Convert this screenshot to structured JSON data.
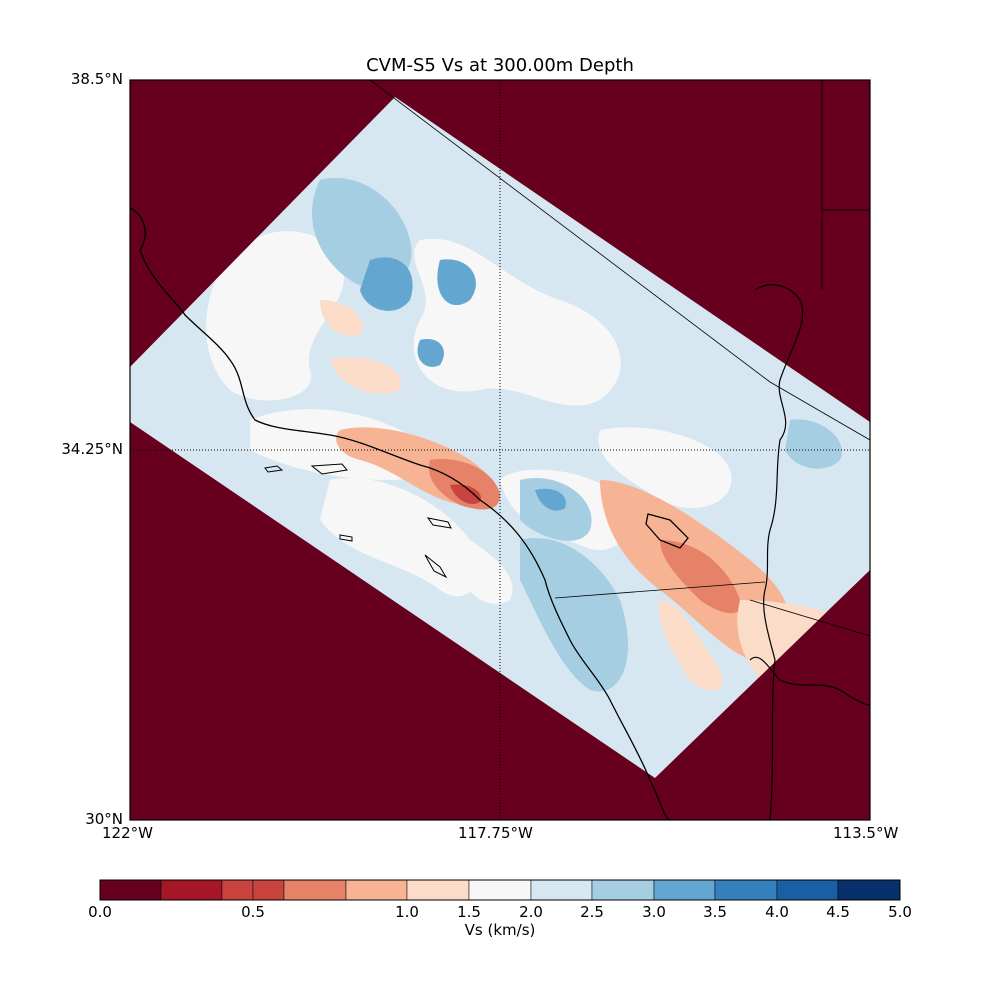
{
  "title": "CVM-S5 Vs at 300.00m Depth",
  "axes": {
    "lat_ticks": [
      "38.5°N",
      "34.25°N",
      "30°N"
    ],
    "lon_ticks": [
      "122°W",
      "117.75°W",
      "113.5°W"
    ],
    "lat_range": [
      30.0,
      38.5
    ],
    "lon_range": [
      -122.0,
      -113.5
    ],
    "gridlines": "dotted at 34.25°N and 117.75°W"
  },
  "colorbar": {
    "label": "Vs (km/s)",
    "ticks": [
      "0.0",
      "0.5",
      "1.0",
      "1.5",
      "2.0",
      "2.5",
      "3.0",
      "3.5",
      "4.0",
      "4.5",
      "5.0"
    ],
    "colors": [
      "#67001f",
      "#a51626",
      "#c9443f",
      "#e58267",
      "#f6b495",
      "#fbdcc9",
      "#f7f7f7",
      "#d6e7f1",
      "#a6cee3",
      "#63a6d0",
      "#3581bd",
      "#1a5fa4",
      "#08306b"
    ],
    "orientation": "horizontal",
    "position": "bottom"
  },
  "map": {
    "background_color": "#67001f",
    "dominant_value_color": "#d6e7f1",
    "features": [
      "coastline",
      "state borders",
      "country border"
    ]
  }
}
